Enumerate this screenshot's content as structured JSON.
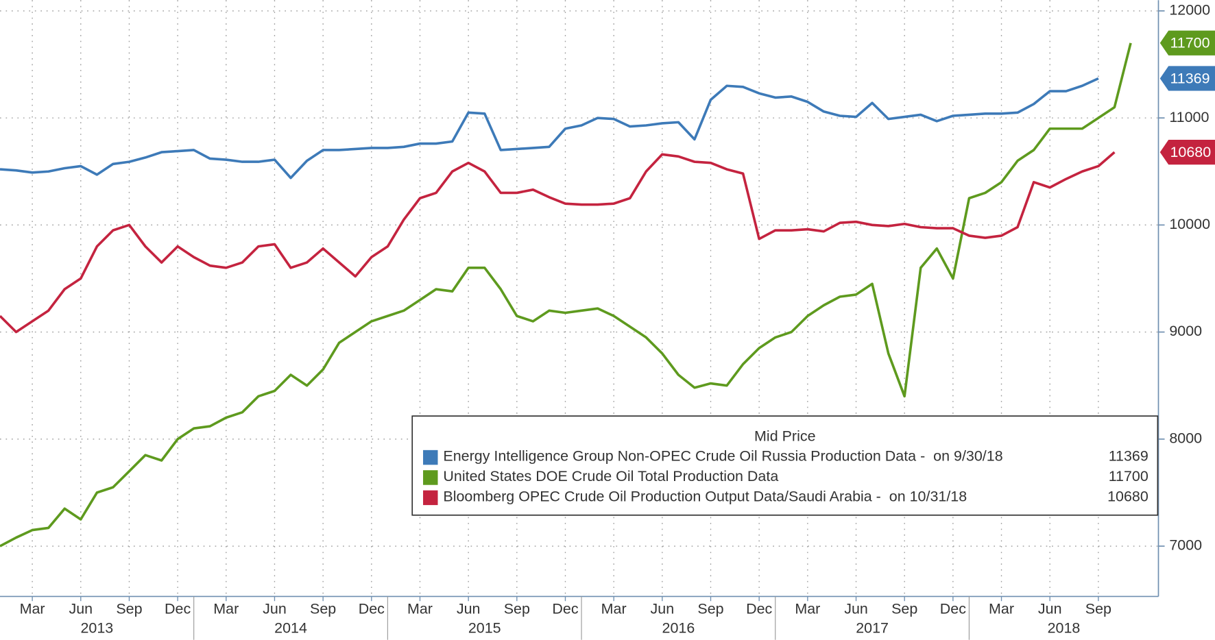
{
  "chart_data": {
    "type": "line",
    "x": [
      "2013-01",
      "2013-02",
      "2013-03",
      "2013-04",
      "2013-05",
      "2013-06",
      "2013-07",
      "2013-08",
      "2013-09",
      "2013-10",
      "2013-11",
      "2013-12",
      "2014-01",
      "2014-02",
      "2014-03",
      "2014-04",
      "2014-05",
      "2014-06",
      "2014-07",
      "2014-08",
      "2014-09",
      "2014-10",
      "2014-11",
      "2014-12",
      "2015-01",
      "2015-02",
      "2015-03",
      "2015-04",
      "2015-05",
      "2015-06",
      "2015-07",
      "2015-08",
      "2015-09",
      "2015-10",
      "2015-11",
      "2015-12",
      "2016-01",
      "2016-02",
      "2016-03",
      "2016-04",
      "2016-05",
      "2016-06",
      "2016-07",
      "2016-08",
      "2016-09",
      "2016-10",
      "2016-11",
      "2016-12",
      "2017-01",
      "2017-02",
      "2017-03",
      "2017-04",
      "2017-05",
      "2017-06",
      "2017-07",
      "2017-08",
      "2017-09",
      "2017-10",
      "2017-11",
      "2017-12",
      "2018-01",
      "2018-02",
      "2018-03",
      "2018-04",
      "2018-05",
      "2018-06",
      "2018-07",
      "2018-08",
      "2018-09",
      "2018-10",
      "2018-11"
    ],
    "xlim": [
      "2013-01",
      "2018-12"
    ],
    "xticks": [
      {
        "value": "2013-03",
        "label": "Mar"
      },
      {
        "value": "2013-06",
        "label": "Jun"
      },
      {
        "value": "2013-09",
        "label": "Sep"
      },
      {
        "value": "2013-12",
        "label": "Dec"
      },
      {
        "value": "2014-03",
        "label": "Mar"
      },
      {
        "value": "2014-06",
        "label": "Jun"
      },
      {
        "value": "2014-09",
        "label": "Sep"
      },
      {
        "value": "2014-12",
        "label": "Dec"
      },
      {
        "value": "2015-03",
        "label": "Mar"
      },
      {
        "value": "2015-06",
        "label": "Jun"
      },
      {
        "value": "2015-09",
        "label": "Sep"
      },
      {
        "value": "2015-12",
        "label": "Dec"
      },
      {
        "value": "2016-03",
        "label": "Mar"
      },
      {
        "value": "2016-06",
        "label": "Jun"
      },
      {
        "value": "2016-09",
        "label": "Sep"
      },
      {
        "value": "2016-12",
        "label": "Dec"
      },
      {
        "value": "2017-03",
        "label": "Mar"
      },
      {
        "value": "2017-06",
        "label": "Jun"
      },
      {
        "value": "2017-09",
        "label": "Sep"
      },
      {
        "value": "2017-12",
        "label": "Dec"
      },
      {
        "value": "2018-03",
        "label": "Mar"
      },
      {
        "value": "2018-06",
        "label": "Jun"
      },
      {
        "value": "2018-09",
        "label": "Sep"
      }
    ],
    "years": [
      "2013",
      "2014",
      "2015",
      "2016",
      "2017",
      "2018"
    ],
    "ylim": [
      6530,
      12100
    ],
    "yticks": [
      7000,
      8000,
      9000,
      10000,
      11000,
      12000
    ],
    "grid": true,
    "legend_title": "Mid Price",
    "legend_position": "lower right",
    "series": [
      {
        "name": "Energy Intelligence Group Non-OPEC Crude Oil Russia Production Data -  on 9/30/18",
        "color": "#3d7ab8",
        "values": [
          10520,
          10510,
          10490,
          10500,
          10530,
          10550,
          10470,
          10570,
          10590,
          10630,
          10680,
          10690,
          10700,
          10620,
          10610,
          10590,
          10590,
          10610,
          10440,
          10600,
          10700,
          10700,
          10710,
          10720,
          10720,
          10730,
          10760,
          10760,
          10780,
          11050,
          11040,
          10700,
          10710,
          10720,
          10730,
          10900,
          10930,
          11000,
          10990,
          10920,
          10930,
          10950,
          10960,
          10800,
          11170,
          11300,
          11290,
          11230,
          11190,
          11200,
          11150,
          11060,
          11020,
          11010,
          11140,
          10990,
          11010,
          11030,
          10970,
          11020,
          11030,
          11040,
          11040,
          11050,
          11130,
          11250,
          11250,
          11300,
          11369,
          null,
          null
        ]
      },
      {
        "name": "United States DOE Crude Oil Total Production Data",
        "color": "#5e9a1e",
        "values": [
          7000,
          7080,
          7150,
          7170,
          7350,
          7250,
          7500,
          7550,
          7700,
          7850,
          7800,
          8000,
          8100,
          8120,
          8200,
          8250,
          8400,
          8450,
          8600,
          8500,
          8650,
          8900,
          9000,
          9100,
          9150,
          9200,
          9300,
          9400,
          9380,
          9600,
          9600,
          9400,
          9150,
          9100,
          9200,
          9180,
          9200,
          9220,
          9150,
          9050,
          8950,
          8800,
          8600,
          8480,
          8520,
          8500,
          8700,
          8850,
          8950,
          9000,
          9150,
          9250,
          9330,
          9350,
          9450,
          8800,
          8400,
          9600,
          9780,
          9500,
          10250,
          10300,
          10400,
          10600,
          10700,
          10900,
          10900,
          10900,
          11000,
          11100,
          11700
        ]
      },
      {
        "name": "Bloomberg OPEC Crude Oil Production Output Data/Saudi Arabia -  on 10/31/18",
        "color": "#c4233f",
        "values": [
          9150,
          9000,
          9100,
          9200,
          9400,
          9500,
          9800,
          9950,
          10000,
          9800,
          9650,
          9800,
          9700,
          9620,
          9600,
          9650,
          9800,
          9820,
          9600,
          9650,
          9780,
          9650,
          9520,
          9700,
          9800,
          10050,
          10250,
          10300,
          10500,
          10580,
          10500,
          10300,
          10300,
          10330,
          10260,
          10200,
          10190,
          10190,
          10200,
          10250,
          10500,
          10660,
          10640,
          10590,
          10580,
          10520,
          10480,
          9870,
          9950,
          9950,
          9960,
          9940,
          10020,
          10030,
          10000,
          9990,
          10010,
          9980,
          9970,
          9970,
          9900,
          9880,
          9900,
          9980,
          10400,
          10350,
          10430,
          10500,
          10550,
          10680,
          null
        ]
      }
    ]
  }
}
